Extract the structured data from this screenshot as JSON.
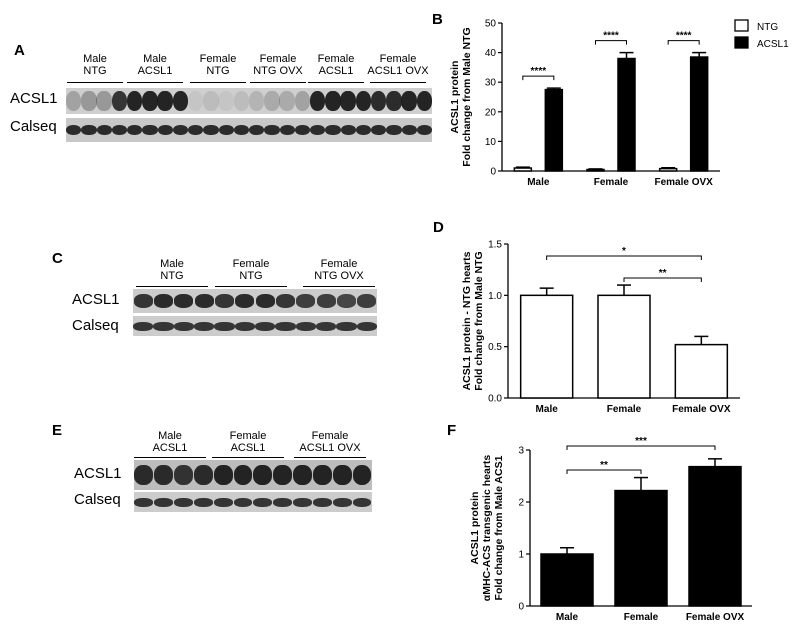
{
  "panels": {
    "A": {
      "letter": "A",
      "groups": [
        "Male\nNTG",
        "Male\nACSL1",
        "Female\nNTG",
        "Female\nNTG OVX",
        "Female\nACSL1",
        "Female\nACSL1 OVX"
      ],
      "rows": [
        "ACSL1",
        "Calseq"
      ]
    },
    "C": {
      "letter": "C",
      "groups": [
        "Male\nNTG",
        "Female\nNTG",
        "Female\nNTG OVX"
      ],
      "rows": [
        "ACSL1",
        "Calseq"
      ]
    },
    "E": {
      "letter": "E",
      "groups": [
        "Male\nACSL1",
        "Female\nACSL1",
        "Female\nACSL1 OVX"
      ],
      "rows": [
        "ACSL1",
        "Calseq"
      ]
    }
  },
  "chart_data": [
    {
      "panel": "B",
      "type": "bar",
      "categories": [
        "Male",
        "Female",
        "Female OVX"
      ],
      "series": [
        {
          "name": "NTG",
          "values": [
            1.0,
            0.5,
            0.8
          ],
          "errors": [
            0.3,
            0.2,
            0.3
          ],
          "color": "#ffffff"
        },
        {
          "name": "ACSL1",
          "values": [
            27.5,
            38.0,
            38.5
          ],
          "errors": [
            0.5,
            2.0,
            1.5
          ],
          "color": "#000000"
        }
      ],
      "ylabel": "ACSL1 protein\nFold change from Male NTG",
      "ylim": [
        0,
        50
      ],
      "yticks": [
        0,
        10,
        20,
        30,
        40,
        50
      ],
      "significance": [
        "****",
        "****",
        "****"
      ],
      "legend": "top-right"
    },
    {
      "panel": "D",
      "type": "bar",
      "categories": [
        "Male",
        "Female",
        "Female OVX"
      ],
      "values": [
        1.0,
        1.0,
        0.52
      ],
      "errors": [
        0.07,
        0.1,
        0.08
      ],
      "color": "#ffffff",
      "ylabel": "ACSL1 protein - NTG hearts\nFold change from Male NTG",
      "ylim": [
        0,
        1.5
      ],
      "yticks": [
        "0.0",
        "0.5",
        "1.0",
        "1.5"
      ],
      "significance": [
        {
          "from": 0,
          "to": 2,
          "label": "*"
        },
        {
          "from": 1,
          "to": 2,
          "label": "**"
        }
      ]
    },
    {
      "panel": "F",
      "type": "bar",
      "categories": [
        "Male",
        "Female",
        "Female OVX"
      ],
      "values": [
        1.0,
        2.22,
        2.68
      ],
      "errors": [
        0.12,
        0.25,
        0.15
      ],
      "color": "#000000",
      "ylabel": "ACSL1 protein\nαMHC-ACS transgenic hearts\nFold change from Male ACS1",
      "ylim": [
        0,
        3
      ],
      "yticks": [
        "0",
        "1",
        "2",
        "3"
      ],
      "significance": [
        {
          "from": 0,
          "to": 2,
          "label": "***"
        },
        {
          "from": 0,
          "to": 1,
          "label": "**"
        }
      ]
    }
  ]
}
